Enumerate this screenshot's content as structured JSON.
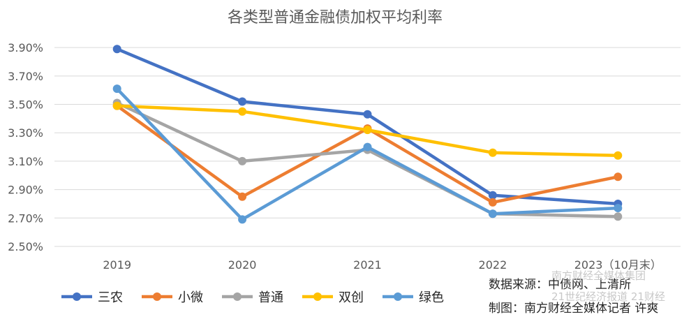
{
  "chart_data": {
    "type": "line",
    "title": "各类型普通金融债加权平均利率",
    "categories": [
      "2019",
      "2020",
      "2021",
      "2022",
      "2023（10月末）"
    ],
    "y_ticks": [
      "2.50%",
      "2.70%",
      "2.90%",
      "3.10%",
      "3.30%",
      "3.50%",
      "3.70%",
      "3.90%"
    ],
    "ylim": [
      2.5,
      3.95
    ],
    "grid": true,
    "legend_position": "bottom-left",
    "series": [
      {
        "name": "三农",
        "color": "#4472C4",
        "values": [
          3.89,
          3.52,
          3.43,
          2.86,
          2.8
        ]
      },
      {
        "name": "小微",
        "color": "#ED7D31",
        "values": [
          3.49,
          2.85,
          3.33,
          2.81,
          2.99
        ]
      },
      {
        "name": "普通",
        "color": "#A5A5A5",
        "values": [
          3.51,
          3.1,
          3.18,
          2.73,
          2.71
        ]
      },
      {
        "name": "双创",
        "color": "#FFC000",
        "values": [
          3.49,
          3.45,
          3.32,
          3.16,
          3.14
        ]
      },
      {
        "name": "绿色",
        "color": "#5B9BD5",
        "values": [
          3.61,
          2.69,
          3.2,
          2.73,
          2.77
        ]
      }
    ]
  },
  "notes": {
    "source": "数据来源：中债网、上清所",
    "author": "制图：南方财经全媒体记者 许爽"
  },
  "watermark": {
    "line1": "南方财经全媒体集团",
    "line2": "21世纪经济报道 21财经"
  }
}
